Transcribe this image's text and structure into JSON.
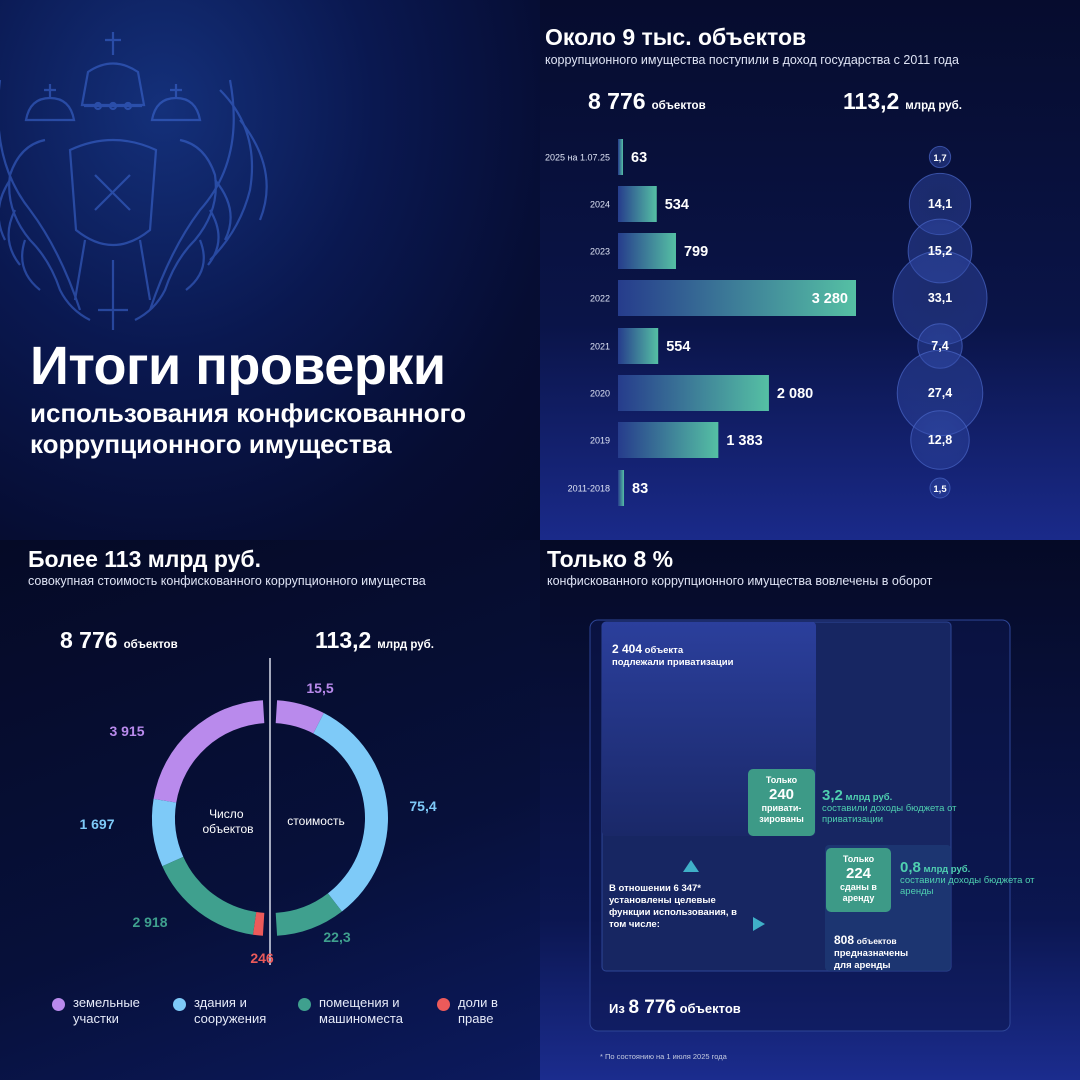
{
  "colors": {
    "land": "#b98aec",
    "buildings": "#7ecaf8",
    "premises": "#3fa08e",
    "shares": "#ec5a5a",
    "bar_start": "#263c8c",
    "bar_end": "#55c0a4"
  },
  "hero": {
    "title": "Итоги проверки",
    "subtitle": "использования конфискованного коррупционного имущества"
  },
  "section_tr": {
    "title": "Около 9 тыс. объектов",
    "subtitle": "коррупционного имущества поступили в доход государства с 2011 года",
    "total_objects": "8 776",
    "total_objects_unit": "объектов",
    "total_value": "113,2",
    "total_value_unit": "млрд руб."
  },
  "section_bl": {
    "title": "Более 113 млрд руб.",
    "subtitle": "совокупная стоимость конфискованного коррупционного имущества",
    "total_objects": "8 776",
    "total_objects_unit": "объектов",
    "total_value": "113,2",
    "total_value_unit": "млрд руб.",
    "center_left": "Число объектов",
    "center_right": "стоимость"
  },
  "section_br": {
    "title": "Только 8 %",
    "subtitle": "конфискованного коррупционного имущества вовлечены в оборот",
    "privatization_num": "2 404",
    "privatization_unit": "объекта",
    "privatization_text": "подлежали приватизации",
    "privatized_pre": "Только",
    "privatized_num": "240",
    "privatized_post": "привати-зированы",
    "priv_income_num": "3,2",
    "priv_income_unit": "млрд руб.",
    "priv_income_text": "составили доходы бюджета от приватизации",
    "purpose_text": "В отношении 6 347* установлены целевые функции использования, в том числе:",
    "rented_pre": "Только",
    "rented_num": "224",
    "rented_post": "сданы в аренду",
    "rent_income_num": "0,8",
    "rent_income_unit": "млрд руб.",
    "rent_income_text": "составили доходы бюджета от аренды",
    "for_rent_num": "808",
    "for_rent_unit": "объектов",
    "for_rent_text": "предназначены для аренды",
    "total_prefix": "Из",
    "total_num": "8 776",
    "total_unit": "объектов",
    "footnote": "* По состоянию на 1 июля 2025 года"
  },
  "legend": [
    {
      "label": "земельные участки",
      "color": "#b98aec"
    },
    {
      "label": "здания и сооружения",
      "color": "#7ecaf8"
    },
    {
      "label": "помещения и машиноместа",
      "color": "#3fa08e"
    },
    {
      "label": "доли в праве",
      "color": "#ec5a5a"
    }
  ],
  "chart_data": [
    {
      "type": "bar",
      "categories": [
        "2025 на 1.07.25",
        "2024",
        "2023",
        "2022",
        "2021",
        "2020",
        "2019",
        "2011-2018"
      ],
      "values": [
        63,
        534,
        799,
        3280,
        554,
        2080,
        1383,
        83
      ],
      "value_labels": [
        "63",
        "534",
        "799",
        "3 280",
        "554",
        "2 080",
        "1 383",
        "83"
      ],
      "orientation": "horizontal"
    },
    {
      "type": "scatter",
      "categories": [
        "2025 на 1.07.25",
        "2024",
        "2023",
        "2022",
        "2021",
        "2020",
        "2019",
        "2011-2018"
      ],
      "values": [
        1.7,
        14.1,
        15.2,
        33.1,
        7.4,
        27.4,
        12.8,
        1.5
      ],
      "value_labels": [
        "1,7",
        "14,1",
        "15,2",
        "33,1",
        "7,4",
        "27,4",
        "12,8",
        "1,5"
      ]
    },
    {
      "type": "pie",
      "categories": [
        "земельные участки",
        "здания и сооружения",
        "помещения и машиноместа",
        "доли в праве"
      ],
      "values": [
        3915,
        1697,
        2918,
        246
      ],
      "value_labels": [
        "3 915",
        "1 697",
        "2 918",
        "246"
      ]
    },
    {
      "type": "pie",
      "categories": [
        "земельные участки",
        "здания и сооружения",
        "помещения и машиноместа"
      ],
      "values": [
        15.5,
        75.4,
        22.3
      ],
      "value_labels": [
        "15,5",
        "75,4",
        "22,3"
      ]
    }
  ]
}
